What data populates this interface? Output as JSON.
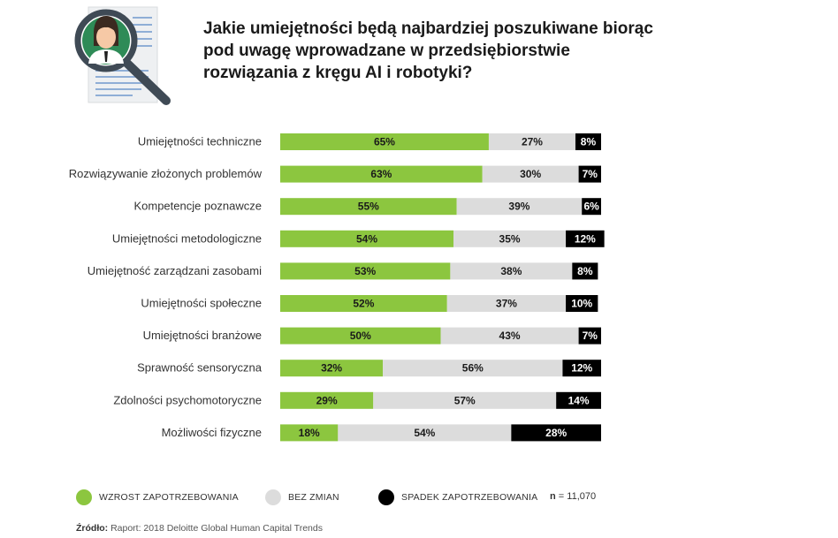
{
  "colors": {
    "increase": "#8cc63f",
    "no_change": "#dcdcdc",
    "decrease": "#000000",
    "text_dark": "#1a1a1a"
  },
  "illustration": {
    "icon": "magnifier-over-resume-icon"
  },
  "chart_data": {
    "type": "bar",
    "stacked": true,
    "orientation": "horizontal",
    "title": "Jakie umiejętności będą najbardziej poszukiwane biorąc pod uwagę wprowadzane w przedsiębiorstwie rozwiązania z kręgu AI i robotyki?",
    "categories": [
      "Umiejętności techniczne",
      "Rozwiązywanie złożonych problemów",
      "Kompetencje poznawcze",
      "Umiejętności metodologiczne",
      "Umiejętność zarządzani zasobami",
      "Umiejętności społeczne",
      "Umiejętności branżowe",
      "Sprawność sensoryczna",
      "Zdolności psychomotoryczne",
      "Możliwości fizyczne"
    ],
    "series": [
      {
        "name": "WZROST ZAPOTRZEBOWANIA",
        "values": [
          65,
          63,
          55,
          54,
          53,
          52,
          50,
          32,
          29,
          18
        ]
      },
      {
        "name": "BEZ ZMIAN",
        "values": [
          27,
          30,
          39,
          35,
          38,
          37,
          43,
          56,
          57,
          54
        ]
      },
      {
        "name": "SPADEK ZAPOTRZEBOWANIA",
        "values": [
          8,
          7,
          6,
          12,
          8,
          10,
          7,
          12,
          14,
          28
        ]
      }
    ],
    "value_suffix": "%",
    "xlim": [
      0,
      100
    ],
    "legend_position": "bottom",
    "grid": false
  },
  "footer": {
    "n_label": "n",
    "n_value": "= 11,070",
    "source_label": "Źródło:",
    "source_text": "Raport: 2018 Deloitte Global Human Capital Trends"
  }
}
